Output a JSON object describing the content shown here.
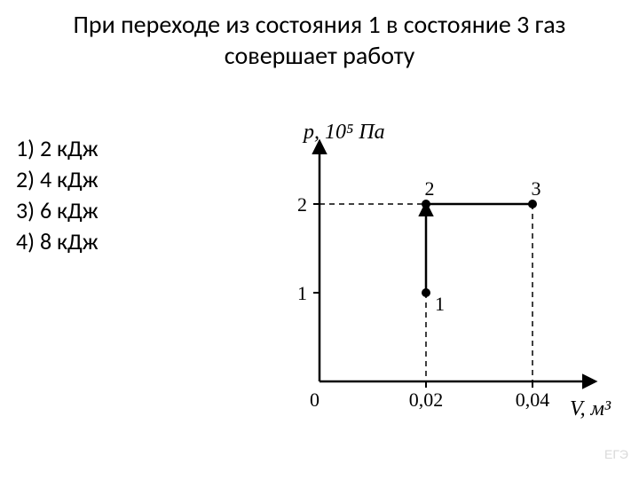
{
  "title_line1": "При переходе из состояния 1 в состояние 3 газ",
  "title_line2": "совершает работу",
  "answers": {
    "a1": "1) 2 кДж",
    "a2": "2) 4 кДж",
    "a3": "3) 6 кДж",
    "a4": "4) 8 кДж"
  },
  "chart": {
    "type": "line",
    "y_axis_label": "p, 10⁵ Па",
    "x_axis_label": "V, м³",
    "y_ticks": [
      "1",
      "2"
    ],
    "x_ticks": [
      "0",
      "0,02",
      "0,04"
    ],
    "point_labels": {
      "p1": "1",
      "p2": "2",
      "p3": "3"
    },
    "points_xy": {
      "p1": [
        0.02,
        1
      ],
      "p2": [
        0.02,
        2
      ],
      "p3": [
        0.04,
        2
      ]
    },
    "xlim": [
      0,
      0.05
    ],
    "ylim": [
      0,
      2.6
    ],
    "line_color": "#000000",
    "point_fill": "#000000",
    "dash_color": "#000000",
    "line_width": 2.5,
    "point_radius": 5,
    "arrow_size": 10,
    "background_color": "#ffffff",
    "label_fontsize": 24,
    "tick_fontsize": 22
  },
  "watermark": "ЕГЭ"
}
